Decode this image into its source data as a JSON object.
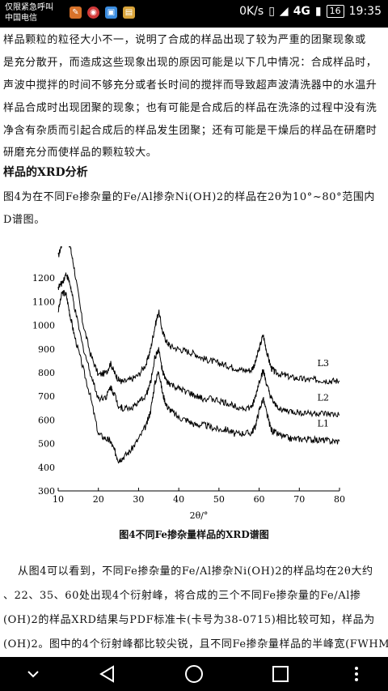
{
  "status": {
    "carrier_line1": "仅限紧急呼叫",
    "carrier_line2": "中国电信",
    "speed": "0K/s",
    "network": "4G",
    "battery": "16",
    "time": "19:35"
  },
  "document": {
    "lines": [
      "样品颗粒的粒径大小不一，说明了合成的样品出现了较为严重的团聚现象或",
      "是充分散开，而造成这些现象出现的原因可能是以下几中情况：合成样品时，",
      "声波中搅拌的时间不够充分或者长时间的搅拌而导致超声波清洗器中的水温升",
      "样品合成时出现团聚的现象；也有可能是合成后的样品在洗涤的过程中没有洗",
      "净含有杂质而引起合成后的样品发生团聚；还有可能是干燥后的样品在研磨时",
      "研磨充分而使样品的颗粒较大。"
    ],
    "heading": "样品的XRD分析",
    "intro_line1": "图4为在不同Fe掺杂量的Fe/Al掺杂Ni(OH)2的样品在2θ为10°~80°范围内",
    "intro_line2": "D谱图。",
    "caption": "图4不同Fe掺杂量样品的XRD谱图",
    "after_lines": [
      "从图4可以看到，不同Fe掺杂量的Fe/Al掺杂Ni(OH)2的样品均在2θ大约",
      "、22、35、60处出现4个衍射峰，将合成的三个不同Fe掺杂量的Fe/Al掺",
      "(OH)2的样品XRD结果与PDF标准卡(卡号为38-0715)相比较可知，样品为",
      "(OH)2。图中的4个衍射峰都比较尖锐，且不同Fe掺杂量样品的半峰宽(FWHM)"
    ]
  },
  "chart_data": {
    "type": "line",
    "xlabel": "2θ/°",
    "ylabel": "",
    "xlim": [
      10,
      80
    ],
    "ylim": [
      300,
      1300
    ],
    "xticks": [
      10,
      20,
      30,
      40,
      50,
      60,
      70,
      80
    ],
    "yticks": [
      300,
      400,
      500,
      600,
      700,
      800,
      900,
      1000,
      1100,
      1200
    ],
    "series": [
      {
        "name": "L1",
        "x": [
          10,
          11,
          12,
          13,
          14,
          16,
          18,
          20,
          22,
          23,
          24,
          25,
          26,
          28,
          30,
          32,
          33,
          34,
          35,
          36,
          37,
          38,
          40,
          42,
          44,
          46,
          48,
          50,
          52,
          54,
          56,
          58,
          59,
          60,
          61,
          62,
          63,
          64,
          66,
          68,
          70,
          72,
          74,
          76,
          78,
          80
        ],
        "y": [
          1060,
          1140,
          1130,
          1040,
          960,
          830,
          700,
          540,
          520,
          510,
          470,
          430,
          440,
          470,
          520,
          580,
          640,
          750,
          810,
          710,
          660,
          640,
          610,
          600,
          580,
          580,
          570,
          560,
          560,
          540,
          545,
          545,
          570,
          640,
          690,
          620,
          560,
          545,
          530,
          520,
          520,
          520,
          515,
          515,
          510,
          510
        ]
      },
      {
        "name": "L2",
        "x": [
          10,
          11,
          12,
          13,
          14,
          16,
          18,
          20,
          22,
          23,
          24,
          25,
          26,
          28,
          30,
          32,
          33,
          34,
          35,
          36,
          37,
          38,
          40,
          42,
          44,
          46,
          48,
          50,
          52,
          54,
          56,
          58,
          59,
          60,
          61,
          62,
          63,
          64,
          66,
          68,
          70,
          72,
          74,
          76,
          78,
          80
        ],
        "y": [
          1160,
          1180,
          1220,
          1170,
          1080,
          920,
          800,
          690,
          700,
          740,
          710,
          660,
          650,
          650,
          670,
          710,
          760,
          860,
          900,
          800,
          760,
          750,
          730,
          720,
          700,
          690,
          690,
          680,
          670,
          660,
          650,
          650,
          690,
          760,
          810,
          740,
          690,
          660,
          640,
          635,
          630,
          630,
          628,
          625,
          622,
          620
        ]
      },
      {
        "name": "L3",
        "x": [
          10,
          11,
          12,
          13,
          14,
          16,
          18,
          20,
          22,
          23,
          24,
          25,
          26,
          28,
          30,
          32,
          33,
          34,
          35,
          36,
          37,
          38,
          40,
          42,
          44,
          46,
          48,
          50,
          52,
          54,
          56,
          58,
          59,
          60,
          61,
          62,
          63,
          64,
          66,
          68,
          70,
          72,
          74,
          76,
          78,
          80
        ],
        "y": [
          1290,
          1350,
          1380,
          1330,
          1240,
          1020,
          880,
          790,
          800,
          840,
          800,
          770,
          760,
          770,
          790,
          840,
          900,
          990,
          1060,
          970,
          930,
          910,
          900,
          890,
          880,
          860,
          850,
          840,
          830,
          820,
          810,
          810,
          840,
          900,
          960,
          880,
          820,
          800,
          790,
          780,
          775,
          770,
          770,
          768,
          765,
          765
        ]
      }
    ]
  }
}
